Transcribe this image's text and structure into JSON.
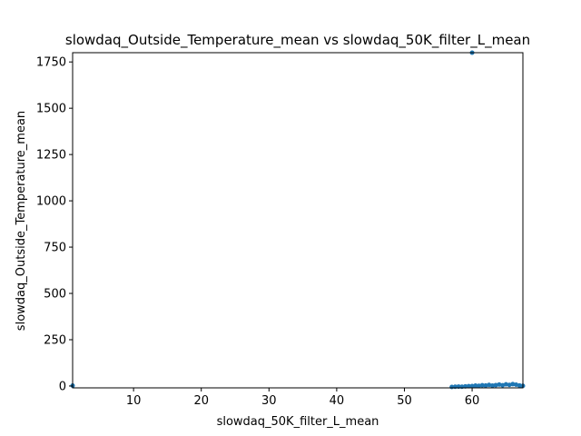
{
  "chart_data": {
    "type": "scatter",
    "title": "slowdaq_Outside_Temperature_mean vs slowdaq_50K_filter_L_mean",
    "xlabel": "slowdaq_50K_filter_L_mean",
    "ylabel": "slowdaq_Outside_Temperature_mean",
    "xlim": [
      1,
      67.5
    ],
    "ylim": [
      -10,
      1800
    ],
    "xticks": [
      10,
      20,
      30,
      40,
      50,
      60
    ],
    "yticks": [
      0,
      250,
      500,
      750,
      1000,
      1250,
      1500,
      1750
    ],
    "grid": false,
    "color": "#1f77b4",
    "points": [
      {
        "x": 1.0,
        "y": 2
      },
      {
        "x": 57.0,
        "y": -5
      },
      {
        "x": 57.5,
        "y": -4
      },
      {
        "x": 58.0,
        "y": -3
      },
      {
        "x": 58.5,
        "y": -4
      },
      {
        "x": 59.0,
        "y": -2
      },
      {
        "x": 59.5,
        "y": -1
      },
      {
        "x": 60.0,
        "y": 1800
      },
      {
        "x": 60.0,
        "y": 0
      },
      {
        "x": 60.5,
        "y": 2
      },
      {
        "x": 61.0,
        "y": 1
      },
      {
        "x": 61.5,
        "y": 4
      },
      {
        "x": 62.0,
        "y": 3
      },
      {
        "x": 62.5,
        "y": 6
      },
      {
        "x": 63.0,
        "y": 2
      },
      {
        "x": 63.5,
        "y": 5
      },
      {
        "x": 64.0,
        "y": 8
      },
      {
        "x": 64.5,
        "y": 4
      },
      {
        "x": 65.0,
        "y": 9
      },
      {
        "x": 65.5,
        "y": 6
      },
      {
        "x": 66.0,
        "y": 10
      },
      {
        "x": 66.5,
        "y": 7
      },
      {
        "x": 67.0,
        "y": 3
      },
      {
        "x": 67.5,
        "y": 1
      }
    ]
  }
}
